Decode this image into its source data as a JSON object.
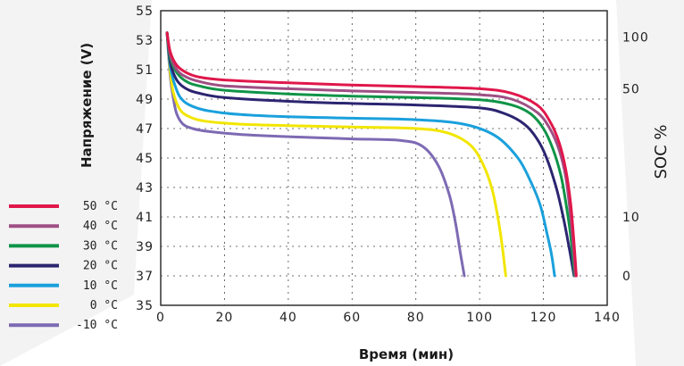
{
  "chart_data": {
    "type": "line",
    "xlabel": "Время (мин)",
    "ylabel": "Напряжение (V)",
    "y2label": "SOC %",
    "xlim": [
      0,
      140
    ],
    "ylim": [
      35,
      55
    ],
    "x_ticks": [
      0,
      20,
      40,
      60,
      80,
      100,
      120,
      140
    ],
    "y_ticks": [
      35,
      37,
      39,
      41,
      43,
      45,
      47,
      49,
      51,
      53,
      55
    ],
    "soc_ticks": [
      {
        "label": "100",
        "voltage": 53.2
      },
      {
        "label": "50",
        "voltage": 49.7
      },
      {
        "label": "10",
        "voltage": 41.0
      },
      {
        "label": "0",
        "voltage": 37.0
      }
    ],
    "grid": true,
    "legend_position": "left",
    "series": [
      {
        "name": "50 °C",
        "color": "#e0174b",
        "x": [
          2,
          3,
          5,
          8,
          12,
          20,
          40,
          60,
          80,
          100,
          110,
          118,
          122,
          125,
          127,
          128.5,
          129.5,
          130.3
        ],
        "y": [
          53.5,
          52.2,
          51.3,
          50.8,
          50.5,
          50.3,
          50.1,
          49.95,
          49.85,
          49.7,
          49.4,
          48.6,
          47.5,
          46.0,
          44.2,
          42.0,
          39.5,
          37.0
        ]
      },
      {
        "name": "40 °C",
        "color": "#9e4f84",
        "x": [
          2,
          3,
          5,
          8,
          12,
          20,
          40,
          60,
          80,
          100,
          110,
          118,
          122,
          125,
          127,
          128.3,
          129.3,
          130.0
        ],
        "y": [
          53.5,
          52.0,
          51.0,
          50.5,
          50.2,
          49.9,
          49.7,
          49.55,
          49.45,
          49.3,
          49.0,
          48.1,
          47.0,
          45.5,
          43.7,
          41.5,
          39.2,
          37.0
        ]
      },
      {
        "name": "30 °C",
        "color": "#0f9447",
        "x": [
          2,
          3,
          5,
          8,
          12,
          20,
          40,
          60,
          80,
          100,
          110,
          116,
          120,
          123,
          125.5,
          127,
          128.5,
          129.8
        ],
        "y": [
          53.5,
          51.8,
          50.8,
          50.2,
          49.9,
          49.6,
          49.35,
          49.2,
          49.1,
          48.95,
          48.6,
          48.0,
          47.0,
          45.6,
          43.8,
          42.0,
          39.8,
          37.0
        ]
      },
      {
        "name": "20 °C",
        "color": "#2b2570",
        "x": [
          2,
          3,
          5,
          8,
          12,
          20,
          40,
          60,
          80,
          100,
          108,
          114,
          118,
          121,
          124,
          126,
          128,
          129.6
        ],
        "y": [
          53.5,
          51.5,
          50.3,
          49.7,
          49.4,
          49.1,
          48.85,
          48.7,
          48.6,
          48.4,
          48.0,
          47.3,
          46.3,
          45.0,
          43.0,
          41.2,
          39.0,
          37.0
        ]
      },
      {
        "name": "10 °C",
        "color": "#1aa0dc",
        "x": [
          2,
          3,
          5,
          7,
          10,
          15,
          25,
          40,
          60,
          80,
          95,
          105,
          112,
          116,
          119,
          121,
          122.5,
          123.5
        ],
        "y": [
          53.5,
          51.2,
          49.6,
          48.9,
          48.5,
          48.2,
          47.95,
          47.8,
          47.7,
          47.6,
          47.3,
          46.5,
          45.0,
          43.4,
          41.8,
          40.0,
          38.5,
          37.0
        ]
      },
      {
        "name": "0 °C",
        "color": "#f2e600",
        "x": [
          2,
          3,
          4,
          6,
          9,
          14,
          25,
          40,
          60,
          80,
          90,
          97,
          101,
          104,
          106,
          107.2,
          108.2
        ],
        "y": [
          53.5,
          50.8,
          49.4,
          48.3,
          47.8,
          47.5,
          47.3,
          47.2,
          47.1,
          47.0,
          46.7,
          45.9,
          44.6,
          42.8,
          40.6,
          38.8,
          37.0
        ]
      },
      {
        "name": "-10 °C",
        "color": "#7d6ab3",
        "x": [
          2,
          3,
          4,
          5,
          7,
          10,
          15,
          25,
          40,
          60,
          75,
          82,
          87,
          90.5,
          92.5,
          94,
          95.2
        ],
        "y": [
          53.5,
          50.5,
          49.0,
          48.0,
          47.3,
          47.0,
          46.8,
          46.6,
          46.45,
          46.3,
          46.2,
          45.8,
          44.5,
          42.5,
          40.5,
          38.5,
          37.0
        ]
      }
    ]
  }
}
